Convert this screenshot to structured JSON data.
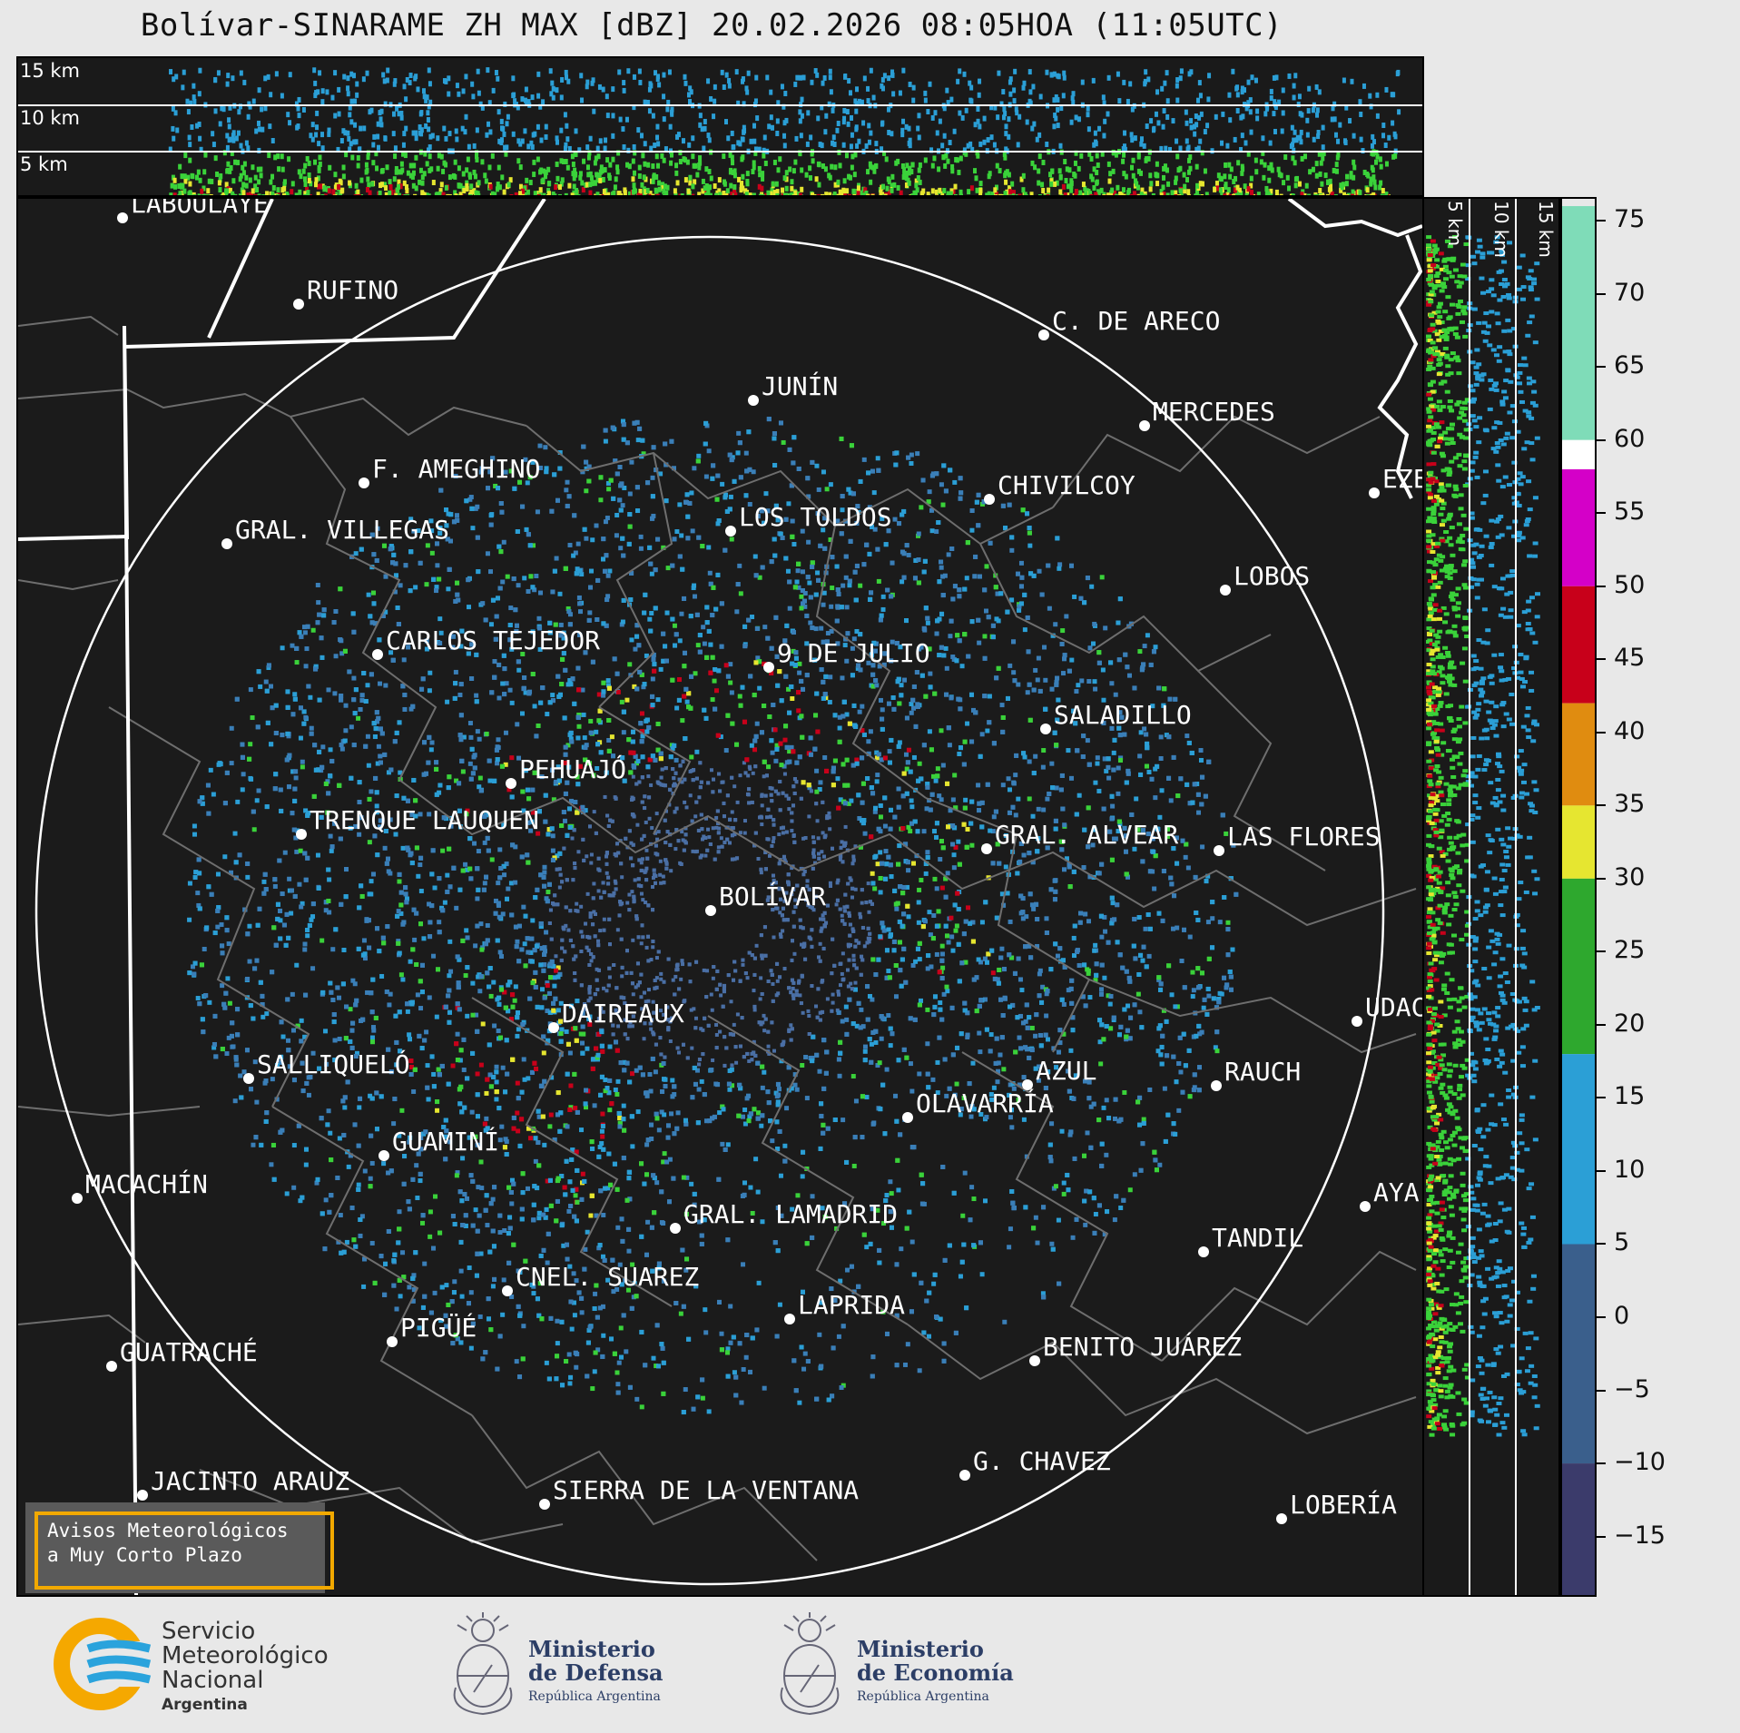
{
  "title": "Bolívar-SINARAME ZH MAX [dBZ] 20.02.2026 08:05HOA (11:05UTC)",
  "altitude_labels": {
    "km15": "15 km",
    "km10": "10 km",
    "km5": "5 km"
  },
  "colorbar": {
    "ticks": [
      "75",
      "70",
      "65",
      "60",
      "55",
      "50",
      "45",
      "40",
      "35",
      "30",
      "25",
      "20",
      "15",
      "10",
      "5",
      "0",
      "−5",
      "−10",
      "−15"
    ],
    "bands": [
      {
        "from": 60,
        "to": 76,
        "color": "#7fdcb8"
      },
      {
        "from": 58,
        "to": 60,
        "color": "#ffffff"
      },
      {
        "from": 50,
        "to": 58,
        "color": "#d400c8"
      },
      {
        "from": 42,
        "to": 50,
        "color": "#c8001a"
      },
      {
        "from": 35,
        "to": 42,
        "color": "#e08c10"
      },
      {
        "from": 30,
        "to": 35,
        "color": "#e6e630"
      },
      {
        "from": 18,
        "to": 30,
        "color": "#2ea82e"
      },
      {
        "from": 5,
        "to": 18,
        "color": "#2b9fd6"
      },
      {
        "from": -10,
        "to": 5,
        "color": "#3a5f8c"
      },
      {
        "from": -19,
        "to": -10,
        "color": "#3b3b6b"
      }
    ]
  },
  "cities": [
    {
      "name": "LABOULAYE"
    },
    {
      "name": "RUFINO"
    },
    {
      "name": "C. DE ARECO"
    },
    {
      "name": "JUNÍN"
    },
    {
      "name": "MERCEDES"
    },
    {
      "name": "F. AMEGHINO"
    },
    {
      "name": "CHIVILCOY"
    },
    {
      "name": "EZE"
    },
    {
      "name": "GRAL. VILLEGAS"
    },
    {
      "name": "LOS TOLDOS"
    },
    {
      "name": "LOBOS"
    },
    {
      "name": "CARLOS TEJEDOR"
    },
    {
      "name": "9 DE JULIO"
    },
    {
      "name": "SALADILLO"
    },
    {
      "name": "PEHUAJÓ"
    },
    {
      "name": "TRENQUE LAUQUEN"
    },
    {
      "name": "GRAL. ALVEAR"
    },
    {
      "name": "LAS FLORES"
    },
    {
      "name": "BOLÍVAR"
    },
    {
      "name": "DAIREAUX"
    },
    {
      "name": "UDAC"
    },
    {
      "name": "SALLIQUELÓ"
    },
    {
      "name": "AZUL"
    },
    {
      "name": "RAUCH"
    },
    {
      "name": "OLAVARRÍA"
    },
    {
      "name": "GUAMINÍ"
    },
    {
      "name": "MACACHÍN"
    },
    {
      "name": "AYA"
    },
    {
      "name": "GRAL. LAMADRID"
    },
    {
      "name": "TANDIL"
    },
    {
      "name": "CNEL. SUAREZ"
    },
    {
      "name": "LAPRIDA"
    },
    {
      "name": "PIGÜÉ"
    },
    {
      "name": "GUATRACHÉ"
    },
    {
      "name": "BENITO JUÁREZ"
    },
    {
      "name": "G. CHAVEZ"
    },
    {
      "name": "JACINTO ARAUZ"
    },
    {
      "name": "SIERRA DE LA VENTANA"
    },
    {
      "name": "LOBERÍA"
    }
  ],
  "warning": {
    "line1": "Avisos Meteorológicos",
    "line2": "a Muy Corto Plazo"
  },
  "footer": {
    "smn": {
      "line1": "Servicio",
      "line2": "Meteorológico",
      "line3": "Nacional",
      "line4": "Argentina"
    },
    "defensa": {
      "line1": "Ministerio",
      "line2": "de Defensa",
      "line3": "República Argentina"
    },
    "economia": {
      "line1": "Ministerio",
      "line2": "de Economía",
      "line3": "República Argentina"
    }
  }
}
